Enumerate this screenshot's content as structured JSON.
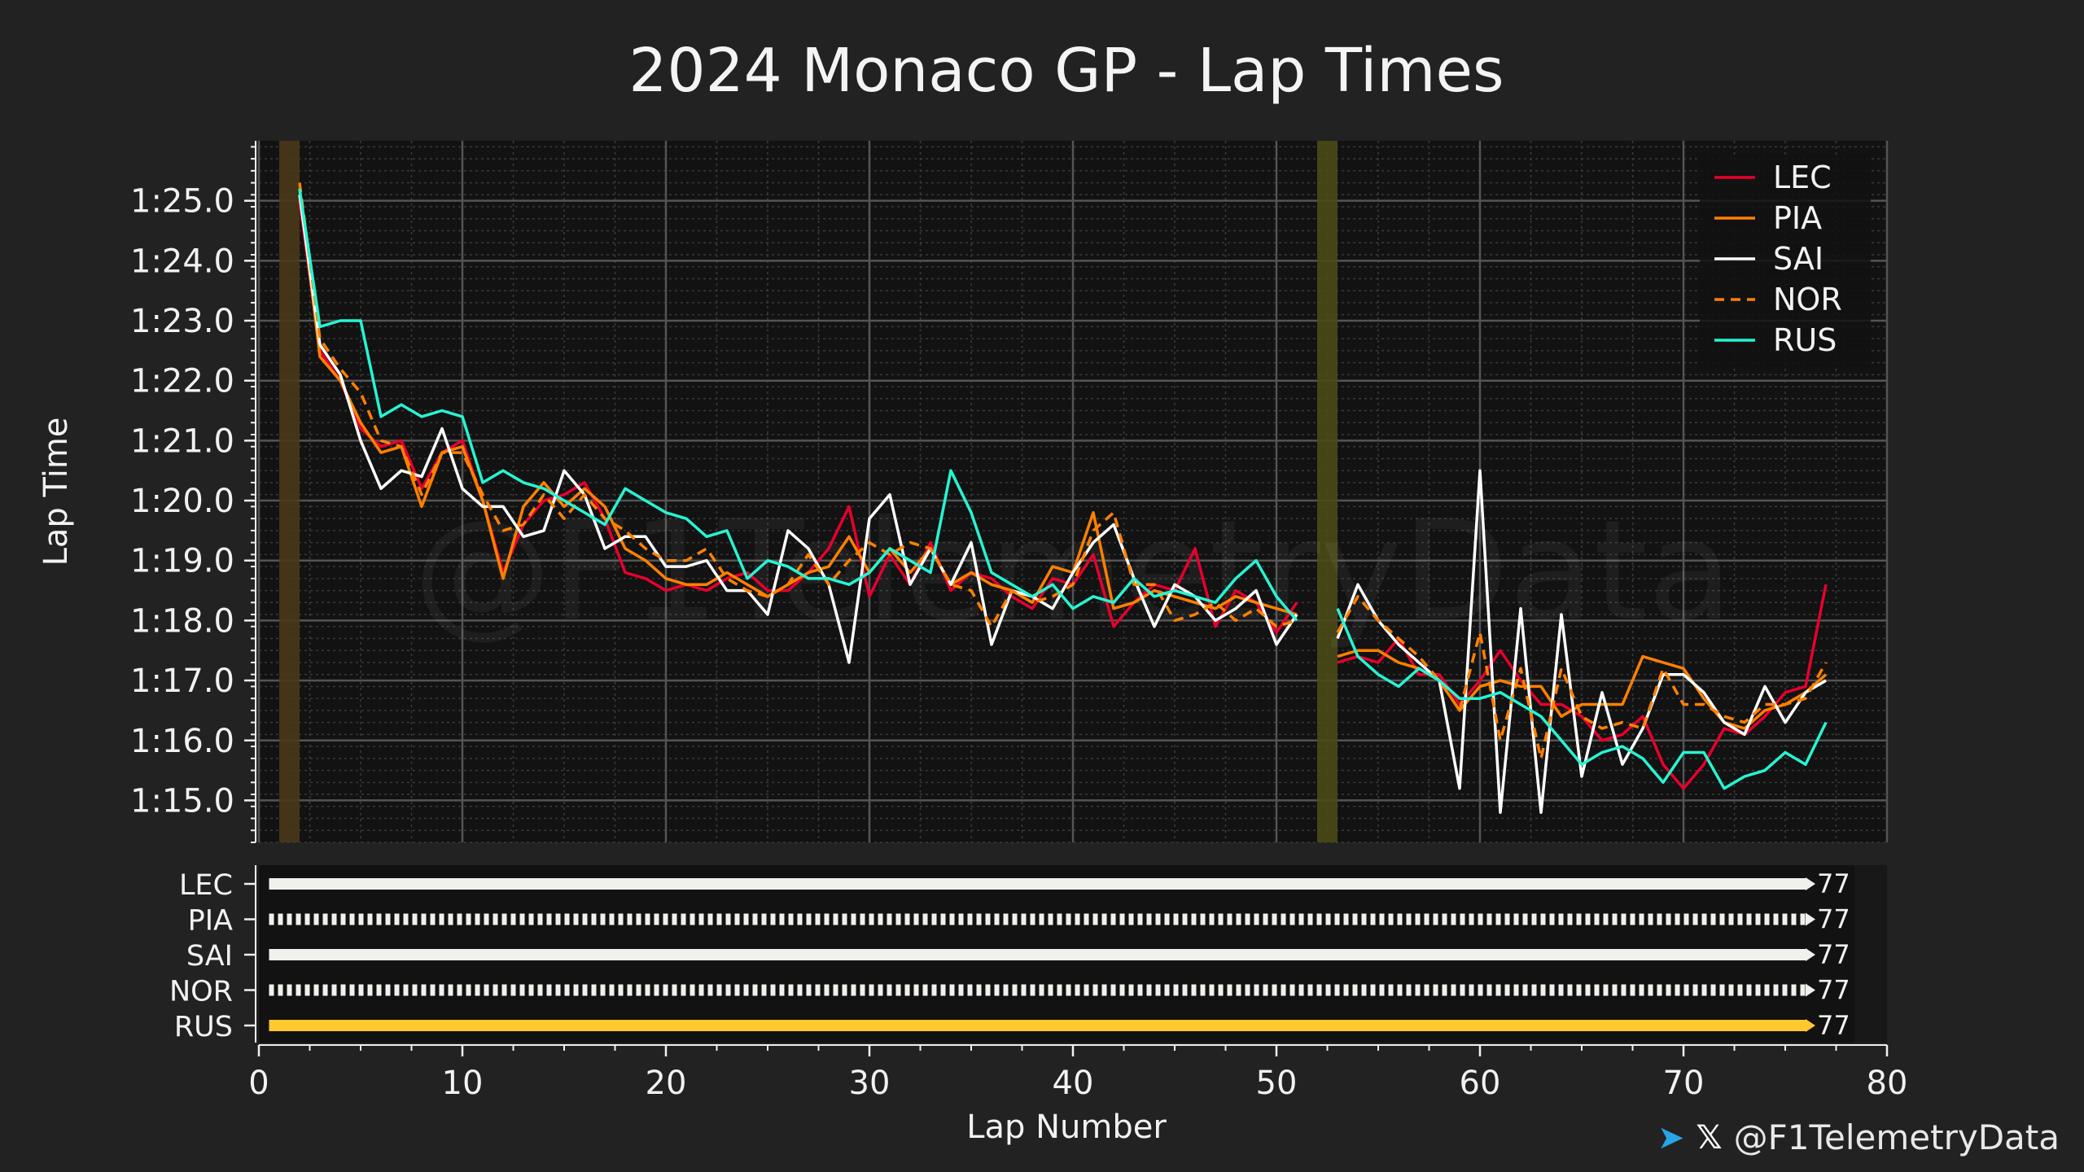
{
  "chart_data": {
    "type": "line",
    "title": "2024 Monaco GP - Lap Times",
    "xlabel": "Lap Number",
    "ylabel": "Lap Time",
    "xlim": [
      0,
      80
    ],
    "ylim": [
      74.3,
      86.0
    ],
    "xticks": [
      "0",
      "10",
      "20",
      "30",
      "40",
      "50",
      "60",
      "70",
      "80"
    ],
    "yticks": [
      {
        "value": 75,
        "label": "1:15.0"
      },
      {
        "value": 76,
        "label": "1:16.0"
      },
      {
        "value": 77,
        "label": "1:17.0"
      },
      {
        "value": 78,
        "label": "1:18.0"
      },
      {
        "value": 79,
        "label": "1:19.0"
      },
      {
        "value": 80,
        "label": "1:20.0"
      },
      {
        "value": 81,
        "label": "1:21.0"
      },
      {
        "value": 82,
        "label": "1:22.0"
      },
      {
        "value": 83,
        "label": "1:23.0"
      },
      {
        "value": 84,
        "label": "1:24.0"
      },
      {
        "value": 85,
        "label": "1:25.0"
      }
    ],
    "grid": true,
    "legend_position": "top-right",
    "watermark": "@F1TelemetryData",
    "shaded_laps": [
      {
        "from": 1,
        "to": 2,
        "color": "#4a3a1a"
      },
      {
        "from": 52,
        "to": 53,
        "color": "#4a4a18"
      }
    ],
    "series": [
      {
        "name": "LEC",
        "color": "#e8002d",
        "dash": "solid",
        "x": [
          2,
          3,
          4,
          5,
          6,
          7,
          8,
          9,
          10,
          11,
          12,
          13,
          14,
          15,
          16,
          17,
          18,
          19,
          20,
          21,
          22,
          23,
          24,
          25,
          26,
          27,
          28,
          29,
          30,
          31,
          32,
          33,
          34,
          35,
          36,
          37,
          38,
          39,
          40,
          41,
          42,
          43,
          44,
          45,
          46,
          47,
          48,
          49,
          50,
          51,
          null,
          53,
          54,
          55,
          56,
          57,
          58,
          59,
          60,
          61,
          62,
          63,
          64,
          65,
          66,
          67,
          68,
          69,
          70,
          71,
          72,
          73,
          74,
          75,
          76,
          77
        ],
        "y": [
          85.0,
          82.5,
          82.0,
          81.2,
          80.9,
          81.0,
          80.2,
          80.8,
          81.0,
          80.0,
          78.8,
          79.6,
          80.0,
          80.1,
          80.3,
          79.7,
          78.8,
          78.7,
          78.5,
          78.6,
          78.5,
          78.7,
          78.8,
          78.5,
          78.5,
          78.8,
          79.2,
          79.9,
          78.4,
          79.1,
          78.6,
          79.3,
          78.5,
          78.8,
          78.7,
          78.4,
          78.2,
          78.7,
          78.6,
          79.1,
          77.9,
          78.3,
          78.6,
          78.5,
          79.2,
          77.9,
          78.5,
          78.3,
          77.8,
          78.3,
          null,
          77.3,
          77.4,
          77.3,
          77.7,
          77.1,
          77.1,
          76.6,
          77.0,
          77.5,
          77.0,
          76.6,
          76.6,
          76.4,
          76.0,
          76.1,
          76.4,
          75.6,
          75.2,
          75.6,
          76.2,
          76.1,
          76.4,
          76.8,
          76.9,
          78.6
        ]
      },
      {
        "name": "PIA",
        "color": "#ff8000",
        "dash": "solid",
        "x": [
          2,
          3,
          4,
          5,
          6,
          7,
          8,
          9,
          10,
          11,
          12,
          13,
          14,
          15,
          16,
          17,
          18,
          19,
          20,
          21,
          22,
          23,
          24,
          25,
          26,
          27,
          28,
          29,
          30,
          31,
          32,
          33,
          34,
          35,
          36,
          37,
          38,
          39,
          40,
          41,
          42,
          43,
          44,
          45,
          46,
          47,
          48,
          49,
          50,
          51,
          null,
          53,
          54,
          55,
          56,
          57,
          58,
          59,
          60,
          61,
          62,
          63,
          64,
          65,
          66,
          67,
          68,
          69,
          70,
          71,
          72,
          73,
          74,
          75,
          76,
          77
        ],
        "y": [
          85.2,
          82.4,
          82.0,
          81.3,
          80.8,
          80.9,
          79.9,
          80.8,
          80.9,
          80.0,
          78.7,
          79.9,
          80.3,
          79.9,
          80.2,
          79.9,
          79.2,
          79.0,
          78.7,
          78.6,
          78.6,
          78.8,
          78.6,
          78.4,
          78.6,
          78.8,
          78.9,
          79.4,
          78.8,
          79.2,
          78.8,
          79.2,
          78.6,
          78.8,
          78.6,
          78.5,
          78.3,
          78.9,
          78.8,
          79.8,
          78.2,
          78.3,
          78.5,
          78.4,
          78.3,
          78.2,
          78.4,
          78.3,
          78.2,
          78.1,
          null,
          77.4,
          77.5,
          77.5,
          77.3,
          77.2,
          77.0,
          76.5,
          76.9,
          77.0,
          76.9,
          76.9,
          76.4,
          76.6,
          76.6,
          76.6,
          77.4,
          77.3,
          77.2,
          76.7,
          76.3,
          76.2,
          76.5,
          76.6,
          76.8,
          77.1
        ]
      },
      {
        "name": "SAI",
        "color": "#ffffff",
        "dash": "solid",
        "x": [
          2,
          3,
          4,
          5,
          6,
          7,
          8,
          9,
          10,
          11,
          12,
          13,
          14,
          15,
          16,
          17,
          18,
          19,
          20,
          21,
          22,
          23,
          24,
          25,
          26,
          27,
          28,
          29,
          30,
          31,
          32,
          33,
          34,
          35,
          36,
          37,
          38,
          39,
          40,
          41,
          42,
          43,
          44,
          45,
          46,
          47,
          48,
          49,
          50,
          51,
          null,
          53,
          54,
          55,
          56,
          57,
          58,
          59,
          60,
          61,
          62,
          63,
          64,
          65,
          66,
          67,
          68,
          69,
          70,
          71,
          72,
          73,
          74,
          75,
          76,
          77
        ],
        "y": [
          85.1,
          82.6,
          82.1,
          81.0,
          80.2,
          80.5,
          80.4,
          81.2,
          80.2,
          79.9,
          79.9,
          79.4,
          79.5,
          80.5,
          80.1,
          79.2,
          79.4,
          79.4,
          78.9,
          78.9,
          79.0,
          78.5,
          78.5,
          78.1,
          79.5,
          79.2,
          78.6,
          77.3,
          79.7,
          80.1,
          78.6,
          79.2,
          78.6,
          79.3,
          77.6,
          78.5,
          78.4,
          78.2,
          78.8,
          79.3,
          79.6,
          78.7,
          77.9,
          78.6,
          78.4,
          78.0,
          78.2,
          78.5,
          77.6,
          78.1,
          null,
          77.7,
          78.6,
          78.0,
          77.6,
          77.3,
          77.0,
          75.2,
          80.5,
          74.8,
          78.2,
          74.8,
          78.1,
          75.4,
          76.8,
          75.6,
          76.2,
          77.1,
          77.1,
          76.8,
          76.3,
          76.1,
          76.9,
          76.3,
          76.8,
          77.0
        ]
      },
      {
        "name": "NOR",
        "color": "#ff8000",
        "dash": "dashed",
        "x": [
          2,
          3,
          4,
          5,
          6,
          7,
          8,
          9,
          10,
          11,
          12,
          13,
          14,
          15,
          16,
          17,
          18,
          19,
          20,
          21,
          22,
          23,
          24,
          25,
          26,
          27,
          28,
          29,
          30,
          31,
          32,
          33,
          34,
          35,
          36,
          37,
          38,
          39,
          40,
          41,
          42,
          43,
          44,
          45,
          46,
          47,
          48,
          49,
          50,
          51,
          null,
          53,
          54,
          55,
          56,
          57,
          58,
          59,
          60,
          61,
          62,
          63,
          64,
          65,
          66,
          67,
          68,
          69,
          70,
          71,
          72,
          73,
          74,
          75,
          76,
          77
        ],
        "y": [
          85.3,
          82.7,
          82.2,
          81.8,
          81.0,
          80.9,
          80.1,
          80.8,
          80.8,
          80.1,
          79.5,
          79.6,
          80.1,
          79.7,
          80.1,
          79.7,
          79.5,
          79.2,
          79.0,
          79.0,
          79.2,
          78.7,
          78.5,
          78.4,
          78.6,
          79.1,
          78.6,
          79.0,
          79.3,
          79.1,
          79.3,
          79.2,
          78.6,
          78.5,
          77.9,
          78.5,
          78.3,
          78.4,
          78.6,
          79.5,
          79.8,
          78.6,
          78.6,
          78.0,
          78.1,
          78.3,
          78.0,
          78.2,
          77.9,
          78.0,
          null,
          77.8,
          78.4,
          78.0,
          77.7,
          77.4,
          77.0,
          76.5,
          77.8,
          76.0,
          77.2,
          75.7,
          77.2,
          76.4,
          76.2,
          76.3,
          76.2,
          77.2,
          76.6,
          76.6,
          76.4,
          76.3,
          76.6,
          76.6,
          76.7,
          77.3
        ]
      },
      {
        "name": "RUS",
        "color": "#27f4d2",
        "dash": "solid",
        "x": [
          2,
          3,
          4,
          5,
          6,
          7,
          8,
          9,
          10,
          11,
          12,
          13,
          14,
          15,
          16,
          17,
          18,
          19,
          20,
          21,
          22,
          23,
          24,
          25,
          26,
          27,
          28,
          29,
          30,
          31,
          32,
          33,
          34,
          35,
          36,
          37,
          38,
          39,
          40,
          41,
          42,
          43,
          44,
          45,
          46,
          47,
          48,
          49,
          50,
          51,
          null,
          53,
          54,
          55,
          56,
          57,
          58,
          59,
          60,
          61,
          62,
          63,
          64,
          65,
          66,
          67,
          68,
          69,
          70,
          71,
          72,
          73,
          74,
          75,
          76,
          77
        ],
        "y": [
          85.2,
          82.9,
          83.0,
          83.0,
          81.4,
          81.6,
          81.4,
          81.5,
          81.4,
          80.3,
          80.5,
          80.3,
          80.2,
          80.0,
          79.8,
          79.6,
          80.2,
          80.0,
          79.8,
          79.7,
          79.4,
          79.5,
          78.7,
          79.0,
          78.9,
          78.7,
          78.7,
          78.6,
          78.8,
          79.2,
          79.0,
          78.8,
          80.5,
          79.8,
          78.8,
          78.6,
          78.4,
          78.6,
          78.2,
          78.4,
          78.3,
          78.7,
          78.4,
          78.5,
          78.4,
          78.3,
          78.7,
          79.0,
          78.4,
          78.0,
          null,
          78.2,
          77.4,
          77.1,
          76.9,
          77.2,
          77.0,
          76.7,
          76.7,
          76.8,
          76.6,
          76.4,
          76.0,
          75.6,
          75.8,
          75.9,
          75.7,
          75.3,
          75.8,
          75.8,
          75.2,
          75.4,
          75.5,
          75.8,
          75.6,
          76.3
        ]
      }
    ],
    "tyre_strip": {
      "drivers": [
        {
          "name": "LEC",
          "laps": "77",
          "color": "#f0f0ec",
          "style": "solid"
        },
        {
          "name": "PIA",
          "laps": "77",
          "color": "#f0f0ec",
          "style": "dotted"
        },
        {
          "name": "SAI",
          "laps": "77",
          "color": "#f0f0ec",
          "style": "solid"
        },
        {
          "name": "NOR",
          "laps": "77",
          "color": "#f0f0ec",
          "style": "dotted"
        },
        {
          "name": "RUS",
          "laps": "77",
          "color": "#ffc82e",
          "style": "solid"
        }
      ]
    }
  },
  "credit": {
    "telegram_icon": "telegram-icon",
    "x_icon": "x-logo-icon",
    "x_glyph": "𝕏",
    "handle": "@F1TelemetryData"
  }
}
